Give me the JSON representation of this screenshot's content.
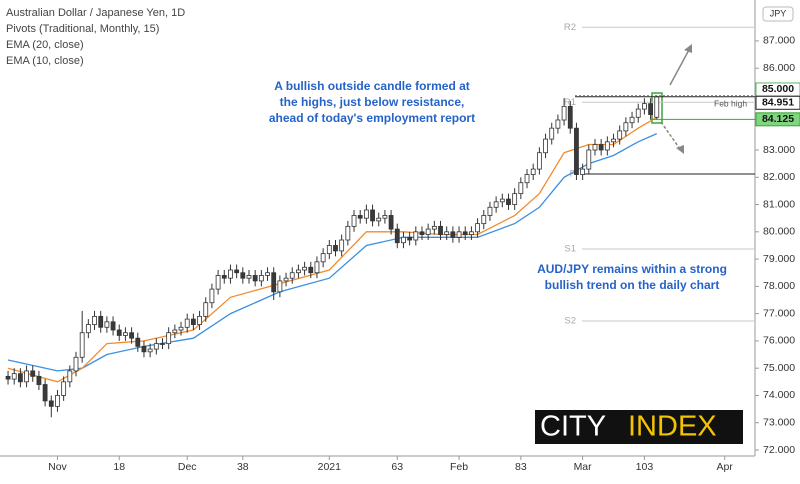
{
  "chart_data": {
    "type": "candlestick",
    "title": "Australian Dollar / Japanese Yen, 1D",
    "indicator": "Pivots (Traditional, Monthly, 15)",
    "currency": "JPY",
    "x": [
      0,
      1,
      2,
      3,
      4,
      5,
      6,
      7,
      8,
      9,
      10,
      11,
      12,
      13,
      14,
      15,
      16,
      17,
      18,
      19,
      20,
      21,
      22,
      23,
      24,
      25,
      26,
      27,
      28,
      29,
      30,
      31,
      32,
      33,
      34,
      35,
      36,
      37,
      38,
      39,
      40,
      41,
      42,
      43,
      44,
      45,
      46,
      47,
      48,
      49,
      50,
      51,
      52,
      53,
      54,
      55,
      56,
      57,
      58,
      59,
      60,
      61,
      62,
      63,
      64,
      65,
      66,
      67,
      68,
      69,
      70,
      71,
      72,
      73,
      74,
      75,
      76,
      77,
      78,
      79,
      80,
      81,
      82,
      83,
      84,
      85,
      86,
      87,
      88,
      89,
      90,
      91,
      92,
      93,
      94,
      95,
      96,
      97,
      98,
      99,
      100,
      101,
      102,
      103,
      104,
      105
    ],
    "open": [
      74.7,
      74.6,
      74.8,
      74.5,
      74.9,
      74.7,
      74.4,
      73.8,
      73.6,
      74.0,
      74.5,
      74.9,
      75.4,
      76.3,
      76.6,
      76.9,
      76.5,
      76.7,
      76.4,
      76.2,
      76.3,
      76.1,
      75.8,
      75.6,
      75.7,
      75.9,
      75.9,
      76.3,
      76.4,
      76.5,
      76.8,
      76.6,
      76.9,
      77.4,
      77.9,
      78.4,
      78.3,
      78.6,
      78.5,
      78.3,
      78.4,
      78.2,
      78.4,
      78.5,
      77.8,
      78.2,
      78.3,
      78.5,
      78.6,
      78.7,
      78.5,
      78.9,
      79.2,
      79.5,
      79.3,
      79.7,
      80.2,
      80.6,
      80.5,
      80.8,
      80.4,
      80.5,
      80.6,
      80.1,
      79.6,
      79.8,
      79.7,
      80.0,
      79.9,
      80.1,
      80.2,
      79.9,
      80.0,
      79.8,
      80.0,
      79.9,
      80.0,
      80.3,
      80.6,
      80.9,
      81.1,
      81.2,
      81.0,
      81.4,
      81.8,
      82.1,
      82.3,
      82.9,
      83.4,
      83.8,
      84.1,
      84.6,
      83.8,
      82.1,
      82.3,
      83.0,
      83.2,
      83.0,
      83.3,
      83.4,
      83.7,
      84.0,
      84.2,
      84.5,
      84.7,
      84.2
    ],
    "high": [
      74.9,
      75.0,
      75.0,
      75.1,
      75.1,
      74.9,
      74.6,
      74.0,
      74.2,
      74.7,
      75.1,
      75.6,
      77.1,
      76.8,
      77.1,
      77.1,
      76.9,
      76.9,
      76.6,
      76.5,
      76.5,
      76.3,
      76.0,
      75.9,
      76.1,
      76.1,
      76.5,
      76.6,
      76.7,
      77.0,
      77.0,
      77.1,
      77.6,
      78.1,
      78.6,
      78.6,
      78.8,
      78.8,
      78.7,
      78.6,
      78.6,
      78.6,
      78.7,
      78.7,
      78.4,
      78.5,
      78.7,
      78.8,
      78.9,
      78.9,
      79.1,
      79.4,
      79.7,
      79.7,
      79.9,
      80.4,
      80.8,
      80.8,
      81.0,
      81.0,
      80.7,
      80.8,
      80.8,
      80.3,
      80.0,
      80.0,
      80.2,
      80.2,
      80.3,
      80.4,
      80.4,
      80.2,
      80.2,
      80.2,
      80.2,
      80.2,
      80.5,
      80.8,
      81.1,
      81.3,
      81.4,
      81.4,
      81.6,
      82.0,
      82.3,
      82.5,
      83.1,
      83.6,
      84.0,
      84.3,
      84.9,
      84.8,
      84.0,
      82.5,
      83.2,
      83.4,
      83.4,
      83.5,
      83.6,
      83.9,
      84.2,
      84.4,
      84.7,
      84.9,
      84.9,
      85.0
    ],
    "low": [
      74.4,
      74.4,
      74.3,
      74.3,
      74.5,
      74.2,
      73.6,
      73.2,
      73.4,
      73.8,
      74.3,
      74.7,
      75.2,
      76.1,
      76.4,
      76.3,
      76.3,
      76.2,
      76.0,
      76.0,
      75.9,
      75.6,
      75.4,
      75.4,
      75.5,
      75.7,
      75.7,
      76.1,
      76.2,
      76.3,
      76.4,
      76.4,
      76.7,
      77.2,
      77.7,
      78.1,
      78.1,
      78.3,
      78.1,
      78.1,
      78.0,
      78.0,
      78.2,
      77.5,
      77.6,
      78.0,
      78.1,
      78.3,
      78.4,
      78.3,
      78.3,
      78.7,
      79.0,
      79.1,
      79.1,
      79.5,
      80.0,
      80.3,
      80.3,
      80.2,
      80.2,
      80.3,
      79.9,
      79.4,
      79.4,
      79.5,
      79.5,
      79.7,
      79.7,
      79.9,
      79.7,
      79.7,
      79.6,
      79.6,
      79.7,
      79.7,
      79.8,
      80.1,
      80.4,
      80.7,
      80.9,
      80.8,
      80.8,
      81.2,
      81.6,
      81.9,
      82.1,
      82.7,
      83.2,
      83.6,
      83.9,
      83.6,
      81.9,
      81.9,
      82.1,
      82.8,
      82.8,
      82.8,
      83.1,
      83.2,
      83.5,
      83.8,
      84.0,
      84.3,
      84.1,
      84.1
    ],
    "close": [
      74.6,
      74.8,
      74.5,
      74.9,
      74.7,
      74.4,
      73.8,
      73.6,
      74.0,
      74.5,
      74.9,
      75.4,
      76.3,
      76.6,
      76.9,
      76.5,
      76.7,
      76.4,
      76.2,
      76.3,
      76.1,
      75.8,
      75.6,
      75.7,
      75.9,
      75.9,
      76.3,
      76.4,
      76.5,
      76.8,
      76.6,
      76.9,
      77.4,
      77.9,
      78.4,
      78.3,
      78.6,
      78.5,
      78.3,
      78.4,
      78.2,
      78.4,
      78.5,
      77.8,
      78.2,
      78.3,
      78.5,
      78.6,
      78.7,
      78.5,
      78.9,
      79.2,
      79.5,
      79.3,
      79.7,
      80.2,
      80.6,
      80.5,
      80.8,
      80.4,
      80.5,
      80.6,
      80.1,
      79.6,
      79.8,
      79.7,
      80.0,
      79.9,
      80.1,
      80.2,
      79.9,
      80.0,
      79.8,
      80.0,
      79.9,
      80.0,
      80.3,
      80.6,
      80.9,
      81.1,
      81.2,
      81.0,
      81.4,
      81.8,
      82.1,
      82.3,
      82.9,
      83.4,
      83.8,
      84.1,
      84.6,
      83.8,
      82.1,
      82.3,
      83.0,
      83.2,
      83.0,
      83.3,
      83.4,
      83.7,
      84.0,
      84.2,
      84.5,
      84.7,
      84.3,
      84.95
    ],
    "up_color": "#ffffff",
    "down_color": "#3a3a3a",
    "lines": [
      {
        "name": "EMA (20, close)",
        "color": "#3d8fe0",
        "x": [
          0,
          8,
          12,
          16,
          22,
          30,
          36,
          44,
          52,
          58,
          64,
          70,
          76,
          82,
          86,
          90,
          94,
          98,
          102,
          105
        ],
        "values": [
          75.3,
          74.9,
          75.0,
          75.5,
          75.8,
          76.1,
          77.0,
          77.8,
          78.3,
          79.5,
          79.8,
          79.8,
          79.8,
          80.3,
          80.9,
          82.0,
          82.5,
          82.8,
          83.3,
          83.6
        ]
      },
      {
        "name": "EMA (10, close)",
        "color": "#f08c2e",
        "x": [
          0,
          8,
          12,
          16,
          22,
          30,
          36,
          44,
          52,
          58,
          64,
          70,
          76,
          82,
          86,
          90,
          94,
          98,
          102,
          105
        ],
        "values": [
          75.0,
          74.5,
          75.0,
          75.9,
          76.0,
          76.4,
          77.6,
          78.1,
          78.6,
          80.0,
          80.0,
          79.9,
          79.9,
          80.6,
          81.4,
          82.9,
          83.2,
          83.2,
          83.8,
          84.2
        ]
      }
    ],
    "pivots": [
      {
        "label": "R2",
        "value": 87.5,
        "color": "#c8c8c8"
      },
      {
        "label": "R1",
        "value": 84.75,
        "color": "#c8c8c8"
      },
      {
        "label": "P",
        "value": 82.12,
        "color": "#222222"
      },
      {
        "label": "S1",
        "value": 79.37,
        "color": "#c8c8c8"
      },
      {
        "label": "S2",
        "value": 76.73,
        "color": "#c8c8c8"
      }
    ],
    "price_labels": [
      {
        "value": 85.0,
        "label": "85.000",
        "color": "#ffffff",
        "line": "#5cb85c"
      },
      {
        "value": 84.951,
        "label": "84.951",
        "color": "#ffffff",
        "line": "#222222"
      },
      {
        "value": 84.125,
        "label": "84.125",
        "color": "#7fd67f",
        "line": "#3aa63a"
      }
    ],
    "feb_high": "Feb high",
    "annotations": [
      [
        "A bullish outside candle formed at",
        "the highs, just below resistance,",
        "ahead of today's employment report"
      ],
      [
        "AUD/JPY remains within a strong",
        "bullish trend on the daily chart"
      ]
    ],
    "xlim": [
      -1.3,
      120.9
    ],
    "ylim": [
      71.78,
      88.5
    ],
    "xticks": [
      {
        "value": 8,
        "label": "Nov"
      },
      18,
      {
        "value": 29,
        "label": "Dec"
      },
      38,
      {
        "value": 52,
        "label": "2021"
      },
      63,
      {
        "value": 73,
        "label": "Feb"
      },
      83,
      {
        "value": 93,
        "label": "Mar"
      },
      103,
      {
        "value": 116,
        "label": "Apr"
      }
    ],
    "yticks": [
      {
        "value": 72,
        "label": "72.000"
      },
      {
        "value": 73,
        "label": "73.000"
      },
      {
        "value": 74,
        "label": "74.000"
      },
      {
        "value": 75,
        "label": "75.000"
      },
      {
        "value": 76,
        "label": "76.000"
      },
      {
        "value": 77,
        "label": "77.000"
      },
      {
        "value": 78,
        "label": "78.000"
      },
      {
        "value": 79,
        "label": "79.000"
      },
      {
        "value": 80,
        "label": "80.000"
      },
      {
        "value": 81,
        "label": "81.000"
      },
      {
        "value": 82,
        "label": "82.000"
      },
      {
        "value": 83,
        "label": "83.000"
      },
      {
        "value": 84,
        "label": "84.000"
      },
      {
        "value": 86,
        "label": "86.000"
      },
      {
        "value": 87,
        "label": "87.000"
      }
    ]
  },
  "logo": {
    "left": "CITY",
    "right": "INDEX"
  }
}
